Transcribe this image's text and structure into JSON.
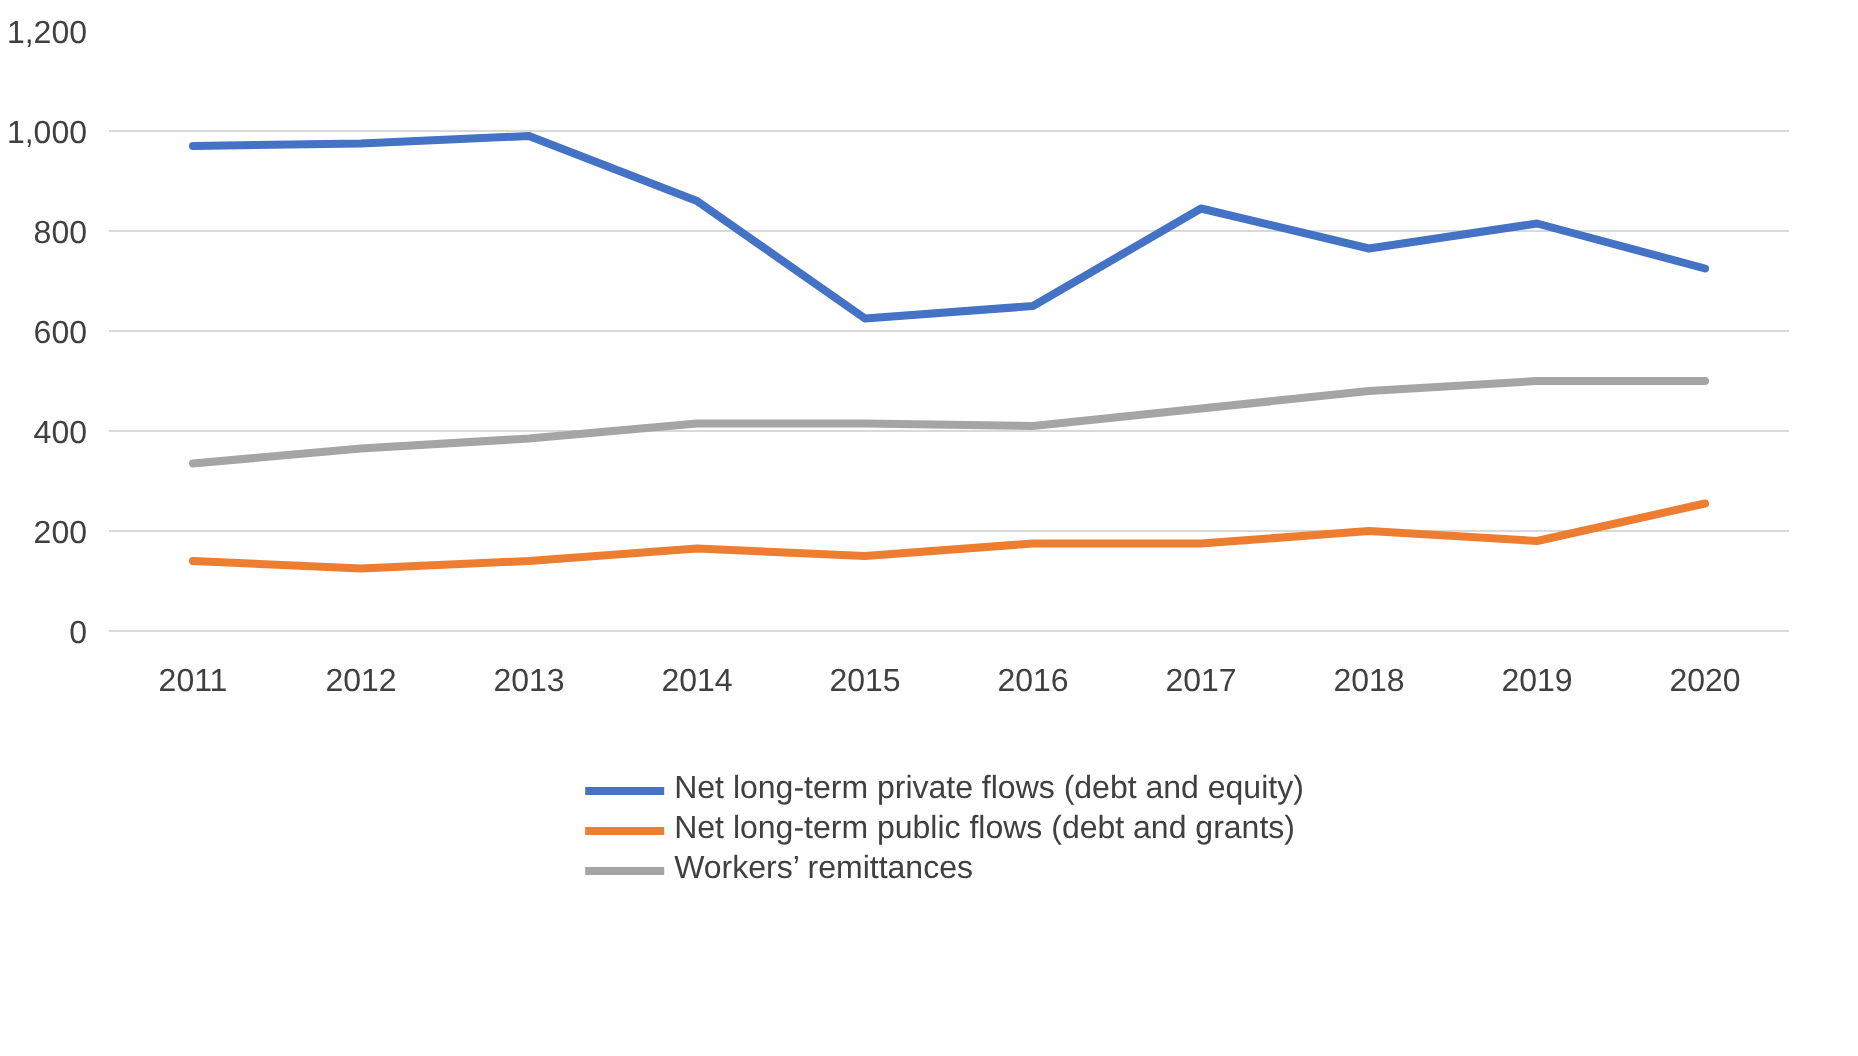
{
  "chart_data": {
    "type": "line",
    "x": [
      2011,
      2012,
      2013,
      2014,
      2015,
      2016,
      2017,
      2018,
      2019,
      2020
    ],
    "xticks": [
      2011,
      2012,
      2013,
      2014,
      2015,
      2016,
      2017,
      2018,
      2019,
      2020
    ],
    "xlim": [
      2010.5,
      2020.5
    ],
    "ylim": [
      0,
      1200
    ],
    "yticks": [
      {
        "value": 0,
        "label": "0"
      },
      {
        "value": 200,
        "label": "200"
      },
      {
        "value": 400,
        "label": "400"
      },
      {
        "value": 600,
        "label": "600"
      },
      {
        "value": 800,
        "label": "800"
      },
      {
        "value": 1000,
        "label": "1,000"
      },
      {
        "value": 1200,
        "label": "1,200"
      }
    ],
    "grid": "y",
    "legend": "bottom",
    "marker": "none",
    "line_style": "solid",
    "series": [
      {
        "name": "Net long-term private flows (debt and equity)",
        "color": "#4472c4",
        "values": [
          970,
          975,
          990,
          860,
          625,
          650,
          845,
          765,
          815,
          725
        ]
      },
      {
        "name": "Net long-term public flows (debt and grants)",
        "color": "#ed7d31",
        "values": [
          140,
          125,
          140,
          165,
          150,
          175,
          175,
          200,
          180,
          255
        ]
      },
      {
        "name": "Workers’ remittances",
        "color": "#a5a5a5",
        "values": [
          335,
          365,
          385,
          415,
          415,
          410,
          445,
          480,
          500,
          500
        ]
      }
    ]
  }
}
